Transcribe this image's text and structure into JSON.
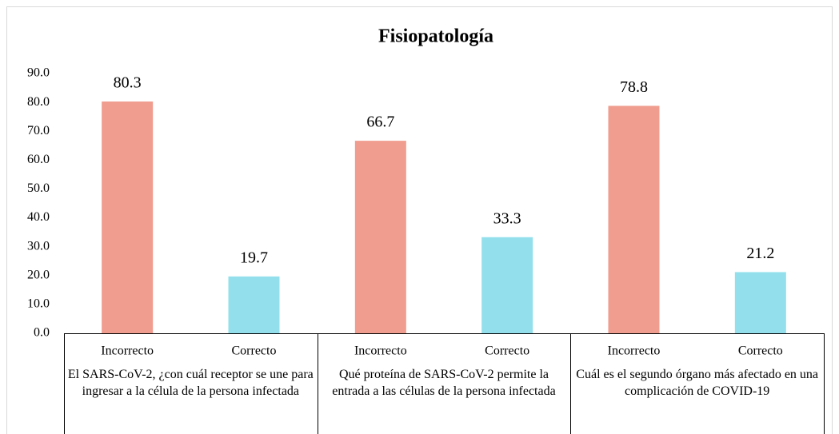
{
  "chart_data": {
    "type": "bar",
    "title": "Fisiopatología",
    "categories": [
      "Incorrecto",
      "Correcto",
      "Incorrecto",
      "Correcto",
      "Incorrecto",
      "Correcto"
    ],
    "groups": [
      "El SARS-CoV-2, ¿con cuál receptor se une para ingresar a la célula de la persona infectada",
      "Qué proteína de SARS-CoV-2 permite la entrada a las células de la persona infectada",
      "Cuál es el segundo órgano más afectado en una complicación de COVID-19"
    ],
    "values": [
      80.3,
      19.7,
      66.7,
      33.3,
      78.8,
      21.2
    ],
    "colors": [
      "#f09c8e",
      "#93e0ec",
      "#f09c8e",
      "#93e0ec",
      "#f09c8e",
      "#93e0ec"
    ],
    "ylim": [
      0,
      90
    ],
    "yticks": [
      {
        "value": 0,
        "label": "0.0"
      },
      {
        "value": 10,
        "label": "10.0"
      },
      {
        "value": 20,
        "label": "20.0"
      },
      {
        "value": 30,
        "label": "30.0"
      },
      {
        "value": 40,
        "label": "40.0"
      },
      {
        "value": 50,
        "label": "50.0"
      },
      {
        "value": 60,
        "label": "60.0"
      },
      {
        "value": 70,
        "label": "70.0"
      },
      {
        "value": 80,
        "label": "80.0"
      },
      {
        "value": 90,
        "label": "90.0"
      }
    ],
    "grid": false
  }
}
